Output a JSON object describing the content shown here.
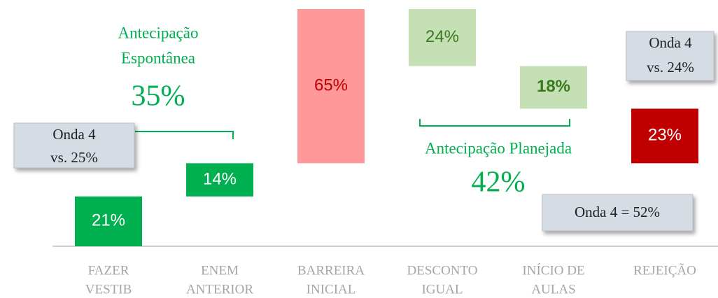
{
  "chart_data": {
    "type": "waterfall",
    "categories": [
      [
        "FAZER",
        "VESTIB"
      ],
      [
        "ENEM",
        "ANTERIOR"
      ],
      [
        "BARREIRA",
        "INICIAL"
      ],
      [
        "DESCONTO",
        "IGUAL"
      ],
      [
        "INÍCIO DE",
        "AULAS"
      ],
      [
        "REJEIÇÃO"
      ]
    ],
    "values": [
      21,
      14,
      65,
      24,
      18,
      23
    ],
    "value_labels": [
      "21%",
      "14%",
      "65%",
      "24%",
      "18%",
      "23%"
    ],
    "steps": [
      "up",
      "up",
      "up",
      "down",
      "down",
      "down"
    ],
    "colors": [
      "#00b050",
      "#00b050",
      "#ff9999",
      "#c5e0b4",
      "#c5e0b4",
      "#c00000"
    ],
    "label_colors": [
      "#ffffff",
      "#ffffff",
      "#c00000",
      "#3a7a1f",
      "#3a7a1f",
      "#ffffff"
    ],
    "groups": [
      {
        "name": [
          "Antecipação",
          "Espontânea"
        ],
        "value": 35,
        "value_label": "35%"
      },
      {
        "name": [
          "Antecipação Planejada"
        ],
        "value": 42,
        "value_label": "42%"
      }
    ],
    "callouts": [
      [
        "Onda 4",
        "vs. 25%"
      ],
      [
        "Onda 4",
        "vs. 24%"
      ],
      [
        "Onda 4 = 52%"
      ]
    ]
  }
}
